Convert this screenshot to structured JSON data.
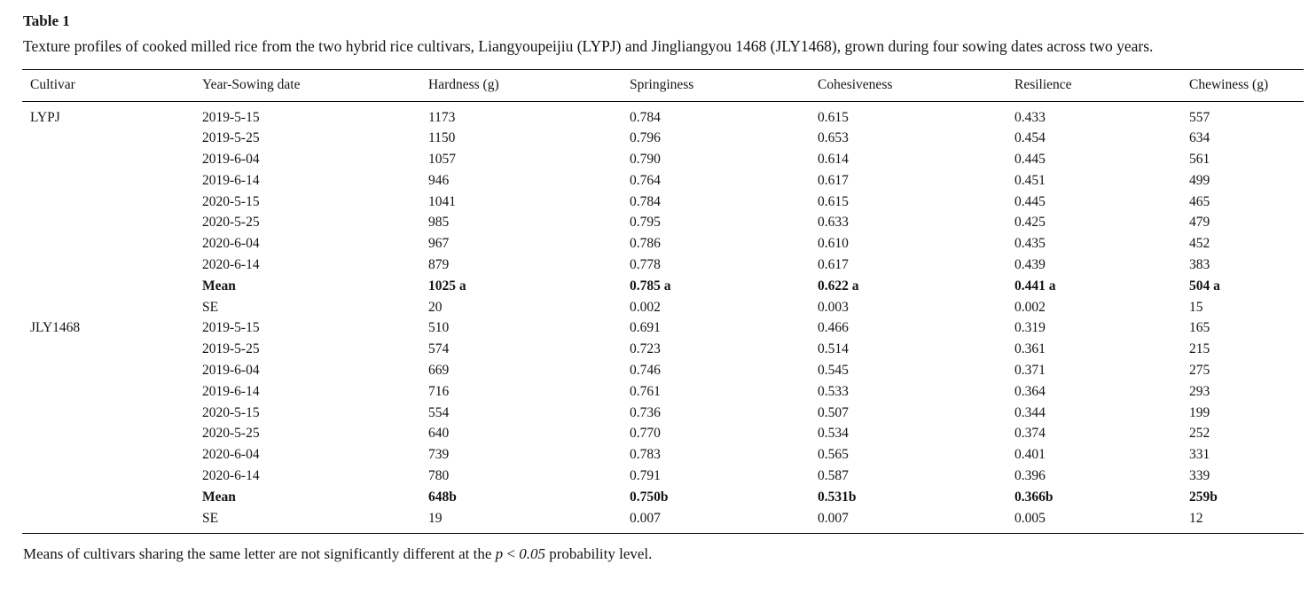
{
  "title": "Table 1",
  "caption": "Texture profiles of cooked milled rice from the two hybrid rice cultivars, Liangyoupeijiu (LYPJ) and Jingliangyou 1468 (JLY1468), grown during four sowing dates across two years.",
  "columns": [
    "Cultivar",
    "Year-Sowing date",
    "Hardness (g)",
    "Springiness",
    "Cohesiveness",
    "Resilience",
    "Chewiness (g)"
  ],
  "groups": [
    {
      "cultivar": "LYPJ",
      "rows": [
        {
          "date": "2019-5-15",
          "hardness": "1173",
          "springiness": "0.784",
          "cohesiveness": "0.615",
          "resilience": "0.433",
          "chewiness": "557"
        },
        {
          "date": "2019-5-25",
          "hardness": "1150",
          "springiness": "0.796",
          "cohesiveness": "0.653",
          "resilience": "0.454",
          "chewiness": "634"
        },
        {
          "date": "2019-6-04",
          "hardness": "1057",
          "springiness": "0.790",
          "cohesiveness": "0.614",
          "resilience": "0.445",
          "chewiness": "561"
        },
        {
          "date": "2019-6-14",
          "hardness": "946",
          "springiness": "0.764",
          "cohesiveness": "0.617",
          "resilience": "0.451",
          "chewiness": "499"
        },
        {
          "date": "2020-5-15",
          "hardness": "1041",
          "springiness": "0.784",
          "cohesiveness": "0.615",
          "resilience": "0.445",
          "chewiness": "465"
        },
        {
          "date": "2020-5-25",
          "hardness": "985",
          "springiness": "0.795",
          "cohesiveness": "0.633",
          "resilience": "0.425",
          "chewiness": "479"
        },
        {
          "date": "2020-6-04",
          "hardness": "967",
          "springiness": "0.786",
          "cohesiveness": "0.610",
          "resilience": "0.435",
          "chewiness": "452"
        },
        {
          "date": "2020-6-14",
          "hardness": "879",
          "springiness": "0.778",
          "cohesiveness": "0.617",
          "resilience": "0.439",
          "chewiness": "383"
        },
        {
          "date": "Mean",
          "hardness": "1025 a",
          "springiness": "0.785 a",
          "cohesiveness": "0.622 a",
          "resilience": "0.441 a",
          "chewiness": "504 a",
          "bold": true
        },
        {
          "date": "SE",
          "hardness": "20",
          "springiness": "0.002",
          "cohesiveness": "0.003",
          "resilience": "0.002",
          "chewiness": "15"
        }
      ]
    },
    {
      "cultivar": "JLY1468",
      "rows": [
        {
          "date": "2019-5-15",
          "hardness": "510",
          "springiness": "0.691",
          "cohesiveness": "0.466",
          "resilience": "0.319",
          "chewiness": "165"
        },
        {
          "date": "2019-5-25",
          "hardness": "574",
          "springiness": "0.723",
          "cohesiveness": "0.514",
          "resilience": "0.361",
          "chewiness": "215"
        },
        {
          "date": "2019-6-04",
          "hardness": "669",
          "springiness": "0.746",
          "cohesiveness": "0.545",
          "resilience": "0.371",
          "chewiness": "275"
        },
        {
          "date": "2019-6-14",
          "hardness": "716",
          "springiness": "0.761",
          "cohesiveness": "0.533",
          "resilience": "0.364",
          "chewiness": "293"
        },
        {
          "date": "2020-5-15",
          "hardness": "554",
          "springiness": "0.736",
          "cohesiveness": "0.507",
          "resilience": "0.344",
          "chewiness": "199"
        },
        {
          "date": "2020-5-25",
          "hardness": "640",
          "springiness": "0.770",
          "cohesiveness": "0.534",
          "resilience": "0.374",
          "chewiness": "252"
        },
        {
          "date": "2020-6-04",
          "hardness": "739",
          "springiness": "0.783",
          "cohesiveness": "0.565",
          "resilience": "0.401",
          "chewiness": "331"
        },
        {
          "date": "2020-6-14",
          "hardness": "780",
          "springiness": "0.791",
          "cohesiveness": "0.587",
          "resilience": "0.396",
          "chewiness": "339"
        },
        {
          "date": "Mean",
          "hardness": "648b",
          "springiness": "0.750b",
          "cohesiveness": "0.531b",
          "resilience": "0.366b",
          "chewiness": "259b",
          "bold": true
        },
        {
          "date": "SE",
          "hardness": "19",
          "springiness": "0.007",
          "cohesiveness": "0.007",
          "resilience": "0.005",
          "chewiness": "12"
        }
      ]
    }
  ],
  "footnote": {
    "before": "Means of cultivars sharing the same letter are not significantly different at the ",
    "p_symbol": "p",
    "comparator": " < ",
    "alpha": "0.05",
    "after": " probability level."
  }
}
